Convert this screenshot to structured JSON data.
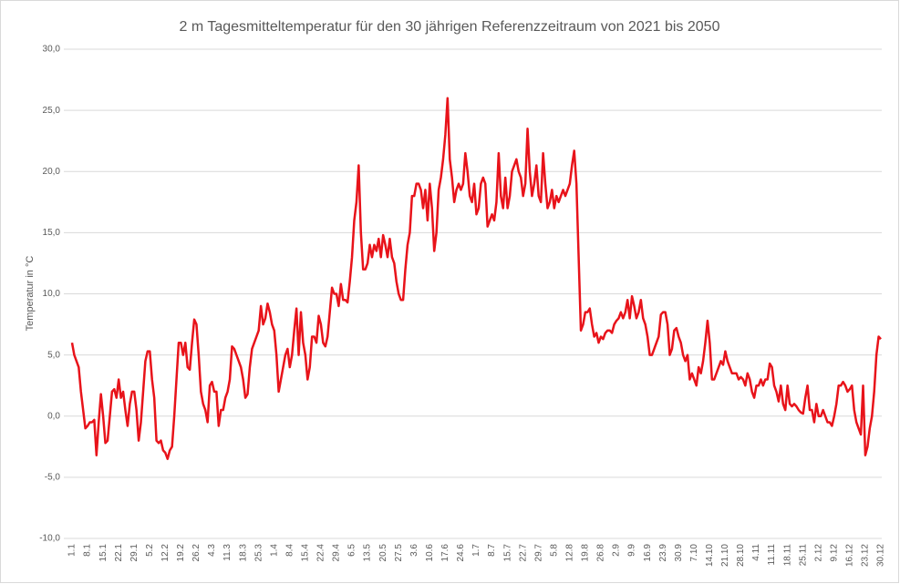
{
  "chart_data": {
    "type": "line",
    "title": "2 m Tagesmitteltemperatur für den 30 jährigen Referenzzeitraum von 2021 bis 2050",
    "y_label": "Temperatur in °C",
    "categories": [
      "1.1",
      null,
      null,
      null,
      null,
      null,
      null,
      "8.1",
      null,
      null,
      null,
      null,
      null,
      null,
      "15.1",
      null,
      null,
      null,
      null,
      null,
      null,
      "22.1",
      null,
      null,
      null,
      null,
      null,
      null,
      "29.1",
      null,
      null,
      null,
      null,
      null,
      null,
      "5.2",
      null,
      null,
      null,
      null,
      null,
      null,
      "12.2",
      null,
      null,
      null,
      null,
      null,
      null,
      "19.2",
      null,
      null,
      null,
      null,
      null,
      null,
      "26.2",
      null,
      null,
      null,
      null,
      null,
      null,
      "4.3",
      null,
      null,
      null,
      null,
      null,
      null,
      "11.3",
      null,
      null,
      null,
      null,
      null,
      null,
      "18.3",
      null,
      null,
      null,
      null,
      null,
      null,
      "25.3",
      null,
      null,
      null,
      null,
      null,
      null,
      "1.4",
      null,
      null,
      null,
      null,
      null,
      null,
      "8.4",
      null,
      null,
      null,
      null,
      null,
      null,
      "15.4",
      null,
      null,
      null,
      null,
      null,
      null,
      "22.4",
      null,
      null,
      null,
      null,
      null,
      null,
      "29.4",
      null,
      null,
      null,
      null,
      null,
      null,
      "6.5",
      null,
      null,
      null,
      null,
      null,
      null,
      "13.5",
      null,
      null,
      null,
      null,
      null,
      null,
      "20.5",
      null,
      null,
      null,
      null,
      null,
      null,
      "27.5",
      null,
      null,
      null,
      null,
      null,
      null,
      "3.6",
      null,
      null,
      null,
      null,
      null,
      null,
      "10.6",
      null,
      null,
      null,
      null,
      null,
      null,
      "17.6",
      null,
      null,
      null,
      null,
      null,
      null,
      "24.6",
      null,
      null,
      null,
      null,
      null,
      null,
      "1.7",
      null,
      null,
      null,
      null,
      null,
      null,
      "8.7",
      null,
      null,
      null,
      null,
      null,
      null,
      "15.7",
      null,
      null,
      null,
      null,
      null,
      null,
      "22.7",
      null,
      null,
      null,
      null,
      null,
      null,
      "29.7",
      null,
      null,
      null,
      null,
      null,
      null,
      "5.8",
      null,
      null,
      null,
      null,
      null,
      null,
      "12.8",
      null,
      null,
      null,
      null,
      null,
      null,
      "19.8",
      null,
      null,
      null,
      null,
      null,
      null,
      "26.8",
      null,
      null,
      null,
      null,
      null,
      null,
      "2.9",
      null,
      null,
      null,
      null,
      null,
      null,
      "9.9",
      null,
      null,
      null,
      null,
      null,
      null,
      "16.9",
      null,
      null,
      null,
      null,
      null,
      null,
      "23.9",
      null,
      null,
      null,
      null,
      null,
      null,
      "30.9",
      null,
      null,
      null,
      null,
      null,
      null,
      "7.10",
      null,
      null,
      null,
      null,
      null,
      null,
      "14.10",
      null,
      null,
      null,
      null,
      null,
      null,
      "21.10",
      null,
      null,
      null,
      null,
      null,
      null,
      "28.10",
      null,
      null,
      null,
      null,
      null,
      null,
      "4.11",
      null,
      null,
      null,
      null,
      null,
      null,
      "11.11",
      null,
      null,
      null,
      null,
      null,
      null,
      "18.11",
      null,
      null,
      null,
      null,
      null,
      null,
      "25.11",
      null,
      null,
      null,
      null,
      null,
      null,
      "2.12",
      null,
      null,
      null,
      null,
      null,
      null,
      "9.12",
      null,
      null,
      null,
      null,
      null,
      null,
      "16.12",
      null,
      null,
      null,
      null,
      null,
      null,
      "23.12",
      null,
      null,
      null,
      null,
      null,
      null,
      "30.12"
    ],
    "series": [
      {
        "name": "Temperatur",
        "color": "#e8131a",
        "values": [
          6,
          5,
          4.5,
          4,
          2,
          0.5,
          -1,
          -0.8,
          -0.5,
          -0.5,
          -0.3,
          -3.2,
          -0.5,
          1.8,
          0,
          -2.2,
          -2,
          0,
          2,
          2.2,
          1.5,
          3,
          1.5,
          2,
          0.5,
          -0.8,
          1,
          2,
          2,
          0.5,
          -2,
          -0.5,
          2,
          4.5,
          5.3,
          5.3,
          3,
          1.5,
          -2,
          -2.2,
          -2,
          -2.8,
          -3,
          -3.5,
          -2.8,
          -2.5,
          0,
          3,
          6,
          6,
          5,
          6,
          4,
          3.8,
          6,
          7.9,
          7.5,
          5,
          2,
          1,
          0.5,
          -0.5,
          2.5,
          2.8,
          2,
          2,
          -0.8,
          0.5,
          0.5,
          1.5,
          2,
          3,
          5.7,
          5.5,
          5,
          4.5,
          4,
          3,
          1.5,
          1.8,
          4,
          5.5,
          6,
          6.5,
          7,
          9,
          7.5,
          8,
          9.2,
          8.5,
          7.5,
          7,
          5,
          2,
          3,
          4,
          5,
          5.5,
          4,
          5,
          7,
          8.8,
          5,
          8.5,
          6,
          5,
          3,
          4,
          6.5,
          6.5,
          6,
          8.2,
          7.5,
          6,
          5.7,
          6.5,
          8.5,
          10.5,
          10,
          10,
          9,
          10.8,
          9.5,
          9.5,
          9.3,
          11,
          13,
          16,
          17.5,
          20.5,
          15,
          12,
          12,
          12.5,
          14,
          13,
          14,
          13.5,
          14.5,
          13,
          14.8,
          14,
          13,
          14.5,
          13,
          12.5,
          11,
          10,
          9.5,
          9.5,
          12,
          14,
          15,
          18,
          18,
          19,
          19,
          18.5,
          17,
          18.5,
          16,
          19,
          17,
          13.5,
          15,
          18.5,
          19.5,
          21,
          23,
          26,
          21,
          19.5,
          17.5,
          18.5,
          19,
          18.5,
          19,
          21.5,
          20,
          18,
          17.5,
          19,
          16.5,
          17,
          19,
          19.5,
          19,
          15.5,
          16,
          16.5,
          16,
          17.5,
          21.5,
          18,
          17,
          19.5,
          17,
          18,
          20,
          20.5,
          21,
          20,
          19.5,
          18,
          19,
          23.5,
          20,
          18,
          19,
          20.5,
          18,
          17.5,
          21.5,
          19,
          17,
          17.5,
          18.5,
          17,
          18,
          17.5,
          18,
          18.5,
          18,
          18.5,
          19,
          20.5,
          21.7,
          19,
          13,
          7,
          7.5,
          8.5,
          8.5,
          8.8,
          7.5,
          6.5,
          6.8,
          6,
          6.5,
          6.3,
          6.8,
          7,
          7,
          6.8,
          7.5,
          7.8,
          8,
          8.5,
          8,
          8.5,
          9.5,
          8,
          9.8,
          9,
          8,
          8.5,
          9.5,
          8,
          7.5,
          6.5,
          5,
          5,
          5.5,
          6,
          6.5,
          8.3,
          8.5,
          8.5,
          7.5,
          5,
          5.5,
          7,
          7.2,
          6.5,
          6,
          5,
          4.5,
          5,
          3,
          3.5,
          3,
          2.5,
          4,
          3.5,
          4.5,
          6,
          7.8,
          6,
          3,
          3,
          3.5,
          4,
          4.5,
          4.2,
          5.3,
          4.5,
          4,
          3.5,
          3.5,
          3.5,
          3,
          3.2,
          3,
          2.5,
          3.5,
          3,
          2,
          1.5,
          2.5,
          2.5,
          3,
          2.5,
          3,
          3,
          4.3,
          4,
          2.5,
          2,
          1.2,
          2.5,
          1,
          0.5,
          2.5,
          1,
          0.8,
          1,
          0.8,
          0.5,
          0.3,
          0.2,
          1.5,
          2.5,
          0.5,
          0.5,
          -0.5,
          1,
          0,
          0,
          0.5,
          0,
          -0.5,
          -0.5,
          -0.8,
          0,
          1,
          2.5,
          2.5,
          2.8,
          2.5,
          2,
          2.2,
          2.5,
          0.5,
          -0.5,
          -1,
          -1.5,
          2.5,
          -3.2,
          -2.5,
          -1,
          0,
          2,
          5,
          6.5,
          6.3
        ]
      }
    ],
    "ylim": [
      -10,
      30
    ],
    "yticks": [
      {
        "value": -10,
        "label": "-10,0"
      },
      {
        "value": -5,
        "label": "-5,0"
      },
      {
        "value": 0,
        "label": "0,0"
      },
      {
        "value": 5,
        "label": "5,0"
      },
      {
        "value": 10,
        "label": "10,0"
      },
      {
        "value": 15,
        "label": "15,0"
      },
      {
        "value": 20,
        "label": "20,0"
      },
      {
        "value": 25,
        "label": "25,0"
      },
      {
        "value": 30,
        "label": "30,0"
      }
    ],
    "grid": true
  }
}
